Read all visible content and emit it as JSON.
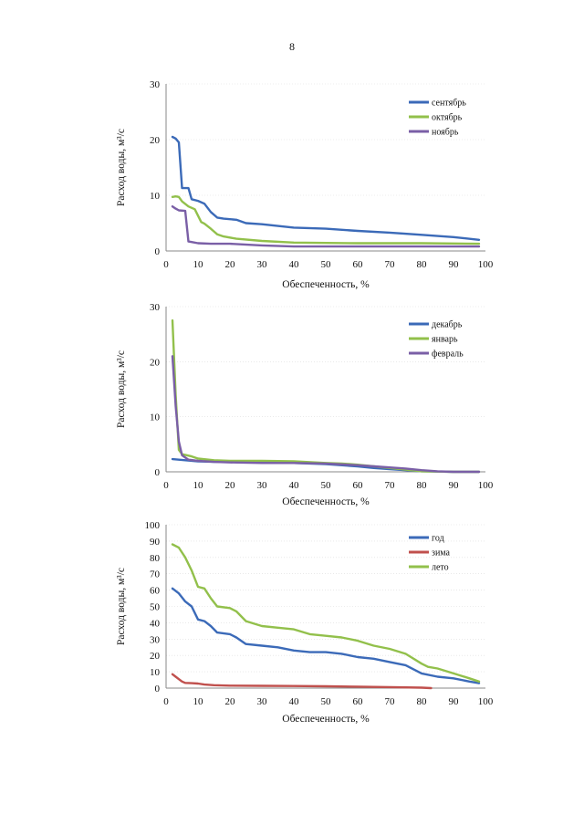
{
  "page": {
    "number": "8"
  },
  "chart_data": [
    {
      "type": "line",
      "title": "",
      "xlabel": "Обеспеченность, %",
      "ylabel": "Расход воды, м³/с",
      "xlim": [
        0,
        100
      ],
      "ylim": [
        0,
        30
      ],
      "xticks": [
        0,
        10,
        20,
        30,
        40,
        50,
        60,
        70,
        80,
        90,
        100
      ],
      "yticks": [
        0,
        10,
        20,
        30
      ],
      "grid": true,
      "legend_position": "top-right",
      "series": [
        {
          "name": "сентябрь",
          "color": "#3b6ab8",
          "x": [
            2,
            3,
            4,
            5,
            7,
            8,
            10,
            12,
            14,
            16,
            18,
            22,
            25,
            30,
            40,
            50,
            60,
            70,
            80,
            90,
            98
          ],
          "y": [
            20.5,
            20.2,
            19.5,
            11.3,
            11.3,
            9.3,
            9.0,
            8.5,
            7.0,
            6.0,
            5.8,
            5.6,
            5.0,
            4.8,
            4.2,
            4.0,
            3.6,
            3.3,
            2.9,
            2.5,
            2.0
          ]
        },
        {
          "name": "октябрь",
          "color": "#92c04b",
          "x": [
            2,
            3,
            4,
            5,
            7,
            9,
            11,
            12,
            14,
            16,
            18,
            22,
            30,
            40,
            60,
            80,
            98
          ],
          "y": [
            9.7,
            9.8,
            9.7,
            8.9,
            8.0,
            7.5,
            5.2,
            4.9,
            4.0,
            3.0,
            2.6,
            2.2,
            1.8,
            1.5,
            1.4,
            1.4,
            1.3
          ]
        },
        {
          "name": "ноябрь",
          "color": "#7a5fa6",
          "x": [
            2,
            3,
            4,
            6,
            7,
            8,
            10,
            14,
            20,
            30,
            40,
            60,
            80,
            98
          ],
          "y": [
            8.0,
            7.6,
            7.3,
            7.2,
            1.7,
            1.6,
            1.4,
            1.3,
            1.3,
            1.0,
            0.8,
            0.8,
            0.8,
            0.8
          ]
        }
      ]
    },
    {
      "type": "line",
      "title": "",
      "xlabel": "Обеспеченность, %",
      "ylabel": "Расход воды, м³/с",
      "xlim": [
        0,
        100
      ],
      "ylim": [
        0,
        30
      ],
      "xticks": [
        0,
        10,
        20,
        30,
        40,
        50,
        60,
        70,
        80,
        90,
        100
      ],
      "yticks": [
        0,
        10,
        20,
        30
      ],
      "grid": true,
      "legend_position": "top-right",
      "series": [
        {
          "name": "декабрь",
          "color": "#3b6ab8",
          "x": [
            2,
            4,
            6,
            8,
            10,
            15,
            20,
            30,
            40,
            50,
            60,
            65,
            70,
            75,
            80,
            85,
            90,
            98
          ],
          "y": [
            2.3,
            2.2,
            2.1,
            2.0,
            1.9,
            1.8,
            1.8,
            1.7,
            1.6,
            1.4,
            1.0,
            0.7,
            0.5,
            0.3,
            0.1,
            0.05,
            0.0,
            0.0
          ]
        },
        {
          "name": "январь",
          "color": "#92c04b",
          "x": [
            2,
            3,
            4,
            5,
            8,
            10,
            15,
            20,
            30,
            40,
            50,
            55,
            60,
            65,
            70,
            75,
            80,
            85,
            90,
            98
          ],
          "y": [
            27.5,
            14.0,
            4.0,
            3.2,
            2.8,
            2.4,
            2.1,
            2.0,
            2.0,
            1.9,
            1.6,
            1.5,
            1.3,
            1.0,
            0.7,
            0.4,
            0.1,
            0.05,
            0.0,
            0.0
          ]
        },
        {
          "name": "февраль",
          "color": "#7a5fa6",
          "x": [
            2,
            3,
            4,
            5,
            7,
            10,
            15,
            20,
            30,
            40,
            50,
            60,
            65,
            70,
            75,
            80,
            85,
            90,
            98
          ],
          "y": [
            21.0,
            12.0,
            5.5,
            3.0,
            2.2,
            2.0,
            1.8,
            1.7,
            1.6,
            1.6,
            1.5,
            1.2,
            1.0,
            0.8,
            0.6,
            0.3,
            0.1,
            0.0,
            0.0
          ]
        }
      ]
    },
    {
      "type": "line",
      "title": "",
      "xlabel": "Обеспеченность, %",
      "ylabel": "Расход воды, м³/с",
      "xlim": [
        0,
        100
      ],
      "ylim": [
        0,
        100
      ],
      "xticks": [
        0,
        10,
        20,
        30,
        40,
        50,
        60,
        70,
        80,
        90,
        100
      ],
      "yticks": [
        0,
        10,
        20,
        30,
        40,
        50,
        60,
        70,
        80,
        90,
        100
      ],
      "grid": true,
      "legend_position": "top-right",
      "series": [
        {
          "name": "год",
          "color": "#3b6ab8",
          "x": [
            2,
            4,
            6,
            8,
            10,
            12,
            14,
            16,
            20,
            22,
            25,
            30,
            35,
            40,
            45,
            50,
            55,
            60,
            65,
            70,
            75,
            80,
            85,
            90,
            95,
            98
          ],
          "y": [
            61,
            58,
            53,
            50,
            42,
            41,
            38,
            34,
            33,
            31,
            27,
            26,
            25,
            23,
            22,
            22,
            21,
            19,
            18,
            16,
            14,
            9,
            7,
            6,
            4,
            3
          ]
        },
        {
          "name": "зима",
          "color": "#c0504d",
          "x": [
            2,
            3,
            4,
            5,
            6,
            8,
            10,
            12,
            15,
            20,
            30,
            40,
            50,
            60,
            70,
            80,
            83
          ],
          "y": [
            8.5,
            7.0,
            5.5,
            4.0,
            3.2,
            3.0,
            2.8,
            2.2,
            1.8,
            1.5,
            1.4,
            1.3,
            1.1,
            0.9,
            0.6,
            0.3,
            0.0
          ]
        },
        {
          "name": "лето",
          "color": "#92c04b",
          "x": [
            2,
            4,
            6,
            8,
            10,
            12,
            14,
            16,
            20,
            22,
            25,
            30,
            35,
            40,
            45,
            50,
            55,
            60,
            65,
            70,
            75,
            80,
            82,
            85,
            90,
            95,
            98
          ],
          "y": [
            88,
            86,
            80,
            72,
            62,
            61,
            55,
            50,
            49,
            47,
            41,
            38,
            37,
            36,
            33,
            32,
            31,
            29,
            26,
            24,
            21,
            15,
            13,
            12,
            9,
            6,
            4
          ]
        }
      ]
    }
  ]
}
